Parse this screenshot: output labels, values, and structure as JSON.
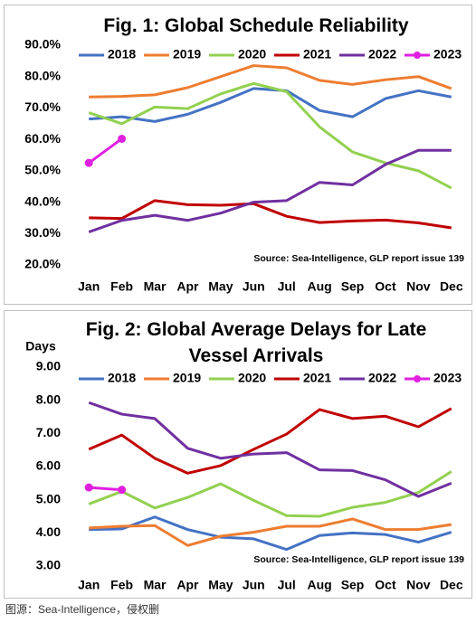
{
  "chart_data": [
    {
      "type": "line",
      "title": "Fig. 1: Global Schedule Reliability",
      "categories": [
        "Jan",
        "Feb",
        "Mar",
        "Apr",
        "May",
        "Jun",
        "Jul",
        "Aug",
        "Sep",
        "Oct",
        "Nov",
        "Dec"
      ],
      "series": [
        {
          "name": "2018",
          "color": "#4472c4",
          "values": [
            66.5,
            67.2,
            65.7,
            68.0,
            71.8,
            76.2,
            75.5,
            69.2,
            67.2,
            73.0,
            75.5,
            73.5
          ]
        },
        {
          "name": "2019",
          "color": "#ed7d31",
          "values": [
            73.5,
            73.7,
            74.2,
            76.5,
            80.0,
            83.5,
            82.8,
            78.8,
            77.5,
            79.0,
            80.0,
            76.2
          ]
        },
        {
          "name": "2020",
          "color": "#92d050",
          "values": [
            68.5,
            65.0,
            70.3,
            69.8,
            74.5,
            77.8,
            75.2,
            64.0,
            56.0,
            52.5,
            50.0,
            44.5
          ]
        },
        {
          "name": "2021",
          "color": "#c00000",
          "values": [
            35.0,
            34.8,
            40.5,
            39.2,
            39.0,
            39.5,
            35.5,
            33.5,
            34.0,
            34.3,
            33.4,
            31.8
          ]
        },
        {
          "name": "2022",
          "color": "#7030a0",
          "values": [
            30.5,
            34.2,
            35.8,
            34.2,
            36.5,
            40.0,
            40.5,
            46.3,
            45.5,
            52.0,
            56.5,
            56.5
          ]
        },
        {
          "name": "2023",
          "color": "#e020e0",
          "marker": true,
          "values": [
            52.5,
            60.2,
            null,
            null,
            null,
            null,
            null,
            null,
            null,
            null,
            null,
            null
          ]
        }
      ],
      "ylim": [
        20,
        90
      ],
      "yticks": [
        {
          "value": 20,
          "label": "20.0%"
        },
        {
          "value": 30,
          "label": "30.0%"
        },
        {
          "value": 40,
          "label": "40.0%"
        },
        {
          "value": 50,
          "label": "50.0%"
        },
        {
          "value": 60,
          "label": "60.0%"
        },
        {
          "value": 70,
          "label": "70.0%"
        },
        {
          "value": 80,
          "label": "80.0%"
        },
        {
          "value": 90,
          "label": "90.0%"
        }
      ],
      "annotation": "Source: Sea-Intelligence, GLP report issue 139"
    },
    {
      "type": "line",
      "title": "Fig. 2: Global Average Delays for Late Vessel Arrivals",
      "y_label": "Days",
      "categories": [
        "Jan",
        "Feb",
        "Mar",
        "Apr",
        "May",
        "Jun",
        "Jul",
        "Aug",
        "Sep",
        "Oct",
        "Nov",
        "Dec"
      ],
      "series": [
        {
          "name": "2018",
          "color": "#4472c4",
          "values": [
            4.1,
            4.12,
            4.48,
            4.1,
            3.87,
            3.82,
            3.5,
            3.92,
            4.0,
            3.95,
            3.72,
            4.02
          ]
        },
        {
          "name": "2019",
          "color": "#ed7d31",
          "values": [
            4.15,
            4.2,
            4.22,
            3.62,
            3.9,
            4.02,
            4.2,
            4.2,
            4.42,
            4.1,
            4.1,
            4.25
          ]
        },
        {
          "name": "2020",
          "color": "#92d050",
          "values": [
            4.87,
            5.25,
            4.75,
            5.07,
            5.48,
            4.98,
            4.52,
            4.5,
            4.77,
            4.92,
            5.22,
            5.85
          ]
        },
        {
          "name": "2021",
          "color": "#c00000",
          "values": [
            6.52,
            6.95,
            6.25,
            5.8,
            6.03,
            6.52,
            6.98,
            7.72,
            7.45,
            7.52,
            7.2,
            7.75
          ]
        },
        {
          "name": "2022",
          "color": "#7030a0",
          "values": [
            7.93,
            7.58,
            7.45,
            6.55,
            6.25,
            6.38,
            6.42,
            5.9,
            5.88,
            5.6,
            5.1,
            5.5
          ]
        },
        {
          "name": "2023",
          "color": "#e020e0",
          "marker": true,
          "values": [
            5.37,
            5.3,
            null,
            null,
            null,
            null,
            null,
            null,
            null,
            null,
            null,
            null
          ]
        }
      ],
      "ylim": [
        3,
        9
      ],
      "yticks": [
        {
          "value": 3,
          "label": "3.00"
        },
        {
          "value": 4,
          "label": "4.00"
        },
        {
          "value": 5,
          "label": "5.00"
        },
        {
          "value": 6,
          "label": "6.00"
        },
        {
          "value": 7,
          "label": "7.00"
        },
        {
          "value": 8,
          "label": "8.00"
        },
        {
          "value": 9,
          "label": "9.00"
        }
      ],
      "annotation": "Source: Sea-Intelligence, GLP report issue 139"
    }
  ],
  "caption": "图源：Sea-Intelligence，侵权删"
}
